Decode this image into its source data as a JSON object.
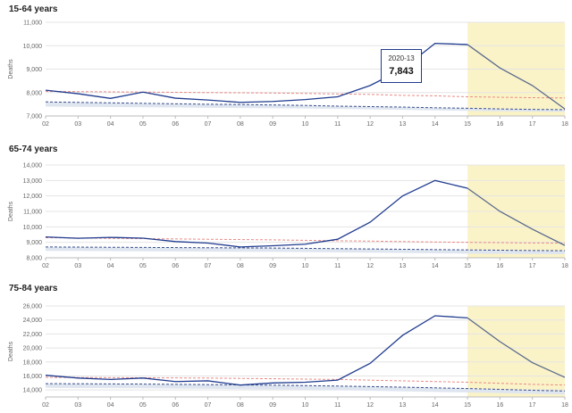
{
  "chart_data": [
    {
      "type": "line",
      "title": "15-64 years",
      "ylabel": "Deaths",
      "ylim": [
        7000,
        11000
      ],
      "yticks": [
        "7,000",
        "8,000",
        "9,000",
        "10,000",
        "11,000"
      ],
      "yticks_values": [
        7000,
        8000,
        9000,
        10000,
        11000
      ],
      "categories": [
        "02",
        "03",
        "04",
        "05",
        "06",
        "07",
        "08",
        "09",
        "10",
        "11",
        "12",
        "13",
        "14",
        "15",
        "16",
        "17",
        "18"
      ],
      "highlight_from": "15",
      "series": [
        {
          "role": "deaths",
          "values": [
            8100,
            7950,
            7750,
            8020,
            7760,
            7680,
            7580,
            7620,
            7700,
            7820,
            8300,
            9000,
            10100,
            10050,
            9050,
            8300,
            7300
          ]
        },
        {
          "role": "upper",
          "values": [
            8050,
            8040,
            8030,
            8020,
            8010,
            8000,
            7990,
            7980,
            7960,
            7940,
            7920,
            7880,
            7860,
            7820,
            7800,
            7780,
            7770
          ]
        },
        {
          "role": "baseline",
          "values": [
            7600,
            7580,
            7560,
            7540,
            7520,
            7500,
            7490,
            7470,
            7450,
            7420,
            7400,
            7380,
            7350,
            7330,
            7300,
            7280,
            7270
          ]
        },
        {
          "role": "lower",
          "values": [
            7400,
            7390,
            7380,
            7370,
            7360,
            7350,
            7340,
            7330,
            7320,
            7300,
            7280,
            7260,
            7240,
            7220,
            7200,
            7190,
            7180
          ]
        }
      ],
      "tooltip": {
        "period": "2020-13",
        "value": "7,843"
      }
    },
    {
      "type": "line",
      "title": "65-74 years",
      "ylabel": "Deaths",
      "ylim": [
        8000,
        14000
      ],
      "yticks": [
        "8,000",
        "9,000",
        "10,000",
        "11,000",
        "12,000",
        "13,000",
        "14,000"
      ],
      "yticks_values": [
        8000,
        9000,
        10000,
        11000,
        12000,
        13000,
        14000
      ],
      "categories": [
        "02",
        "03",
        "04",
        "05",
        "06",
        "07",
        "08",
        "09",
        "10",
        "11",
        "12",
        "13",
        "14",
        "15",
        "16",
        "17",
        "18"
      ],
      "highlight_from": "15",
      "series": [
        {
          "role": "deaths",
          "values": [
            9350,
            9260,
            9320,
            9270,
            9050,
            8950,
            8700,
            8780,
            8880,
            9200,
            10300,
            12000,
            13000,
            12500,
            11000,
            9850,
            8800
          ]
        },
        {
          "role": "upper",
          "values": [
            9300,
            9280,
            9260,
            9240,
            9220,
            9200,
            9180,
            9160,
            9130,
            9100,
            9080,
            9050,
            9020,
            9000,
            8980,
            8960,
            8950
          ]
        },
        {
          "role": "baseline",
          "values": [
            8700,
            8690,
            8680,
            8670,
            8660,
            8650,
            8640,
            8630,
            8610,
            8590,
            8570,
            8550,
            8530,
            8510,
            8490,
            8470,
            8460
          ]
        },
        {
          "role": "lower",
          "values": [
            8450,
            8440,
            8430,
            8420,
            8410,
            8400,
            8390,
            8380,
            8370,
            8350,
            8330,
            8310,
            8290,
            8270,
            8250,
            8240,
            8230
          ]
        }
      ]
    },
    {
      "type": "line",
      "title": "75-84 years",
      "ylabel": "Deaths",
      "ylim": [
        13000,
        26000
      ],
      "yticks": [
        "14,000",
        "16,000",
        "18,000",
        "20,000",
        "22,000",
        "24,000",
        "26,000"
      ],
      "yticks_values": [
        14000,
        16000,
        18000,
        20000,
        22000,
        24000,
        26000
      ],
      "categories": [
        "02",
        "03",
        "04",
        "05",
        "06",
        "07",
        "08",
        "09",
        "10",
        "11",
        "12",
        "13",
        "14",
        "15",
        "16",
        "17",
        "18"
      ],
      "highlight_from": "15",
      "series": [
        {
          "role": "deaths",
          "values": [
            16100,
            15700,
            15500,
            15700,
            15200,
            15300,
            14700,
            15000,
            15100,
            15400,
            17800,
            21800,
            24600,
            24300,
            20900,
            17900,
            15800
          ]
        },
        {
          "role": "upper",
          "values": [
            15800,
            15780,
            15760,
            15740,
            15720,
            15700,
            15650,
            15600,
            15550,
            15500,
            15400,
            15300,
            15200,
            15100,
            14950,
            14800,
            14700
          ]
        },
        {
          "role": "baseline",
          "values": [
            14900,
            14880,
            14860,
            14840,
            14800,
            14760,
            14720,
            14680,
            14620,
            14560,
            14480,
            14400,
            14300,
            14200,
            14080,
            13950,
            13850
          ]
        },
        {
          "role": "lower",
          "values": [
            14300,
            14280,
            14260,
            14240,
            14200,
            14160,
            14120,
            14080,
            14020,
            13960,
            13880,
            13800,
            13720,
            13640,
            13540,
            13440,
            13350
          ]
        }
      ]
    }
  ],
  "colors": {
    "deaths": "#1f3b8f",
    "deaths_forecast": "#5a6b8c",
    "upper": "#e88a85",
    "baseline": "#3a4f8a",
    "band": "#dfe6f0",
    "highlight": "#fbf3c8",
    "grid": "#e4e4e4"
  }
}
